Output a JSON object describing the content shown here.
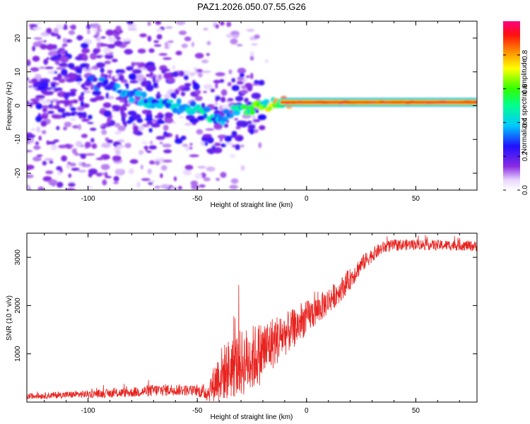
{
  "title": "PAZ1.2026.050.07.55.G26",
  "chart_data": [
    {
      "type": "heatmap",
      "xlabel": "Height of straight line (km)",
      "ylabel": "Frequency (Hz)",
      "xlim": [
        -128,
        78
      ],
      "ylim": [
        -25,
        25
      ],
      "xticks": [
        -100,
        -50,
        0,
        50
      ],
      "xtick_labels": [
        "-100",
        "-50",
        "0",
        "50"
      ],
      "yticks": [
        -20,
        -10,
        0,
        10,
        20
      ],
      "ytick_labels": [
        "-20",
        "-10",
        "0",
        "10",
        "20"
      ],
      "colorbar": {
        "label": "Normalized spectral amplitude",
        "range": [
          0,
          1
        ],
        "ticks": [
          0.0,
          0.2,
          0.4,
          0.6,
          0.8
        ],
        "tick_labels": [
          "0.0",
          "0.2",
          "0.4",
          "0.6",
          "0.8"
        ],
        "colormap": "rainbow (white-violet-blue-cyan-green-yellow-orange-red-magenta)"
      },
      "ridge": {
        "x": [
          -100,
          -90,
          -80,
          -70,
          -60,
          -50,
          -40,
          -30,
          -20,
          -10,
          0,
          10,
          20,
          40,
          60,
          78
        ],
        "frequency": [
          7,
          6,
          3,
          1,
          0,
          -1,
          -4,
          -1,
          0,
          1,
          1,
          1,
          1,
          1,
          1,
          1
        ],
        "amplitude": [
          0.3,
          0.35,
          0.4,
          0.45,
          0.5,
          0.5,
          0.45,
          0.55,
          0.7,
          0.85,
          0.9,
          0.95,
          0.95,
          0.9,
          0.85,
          0.85
        ]
      }
    },
    {
      "type": "line",
      "xlabel": "Height of straight line (km)",
      "ylabel": "SNR (10 * v/v)",
      "xlim": [
        -128,
        78
      ],
      "ylim": [
        0,
        3500
      ],
      "xticks": [
        -100,
        -50,
        0,
        50
      ],
      "xtick_labels": [
        "-100",
        "-50",
        "0",
        "50"
      ],
      "yticks": [
        1000,
        2000,
        3000
      ],
      "ytick_labels": [
        "1000",
        "2000",
        "3000"
      ],
      "color": "#e8231f",
      "series": [
        {
          "name": "SNR",
          "x": [
            -128,
            -110,
            -90,
            -80,
            -70,
            -60,
            -50,
            -45,
            -40,
            -35,
            -30,
            -25,
            -20,
            -15,
            -10,
            -5,
            0,
            5,
            10,
            15,
            20,
            25,
            30,
            35,
            40,
            50,
            60,
            70,
            78
          ],
          "mean": [
            120,
            150,
            180,
            200,
            240,
            260,
            230,
            200,
            550,
            700,
            800,
            900,
            1050,
            1250,
            1400,
            1550,
            1750,
            1900,
            2100,
            2300,
            2550,
            2850,
            3050,
            3200,
            3250,
            3270,
            3250,
            3250,
            3230
          ],
          "spread": [
            60,
            70,
            90,
            100,
            130,
            120,
            110,
            200,
            550,
            650,
            700,
            700,
            650,
            550,
            450,
            400,
            350,
            300,
            280,
            250,
            220,
            180,
            150,
            130,
            120,
            110,
            110,
            110,
            110
          ]
        }
      ]
    }
  ]
}
